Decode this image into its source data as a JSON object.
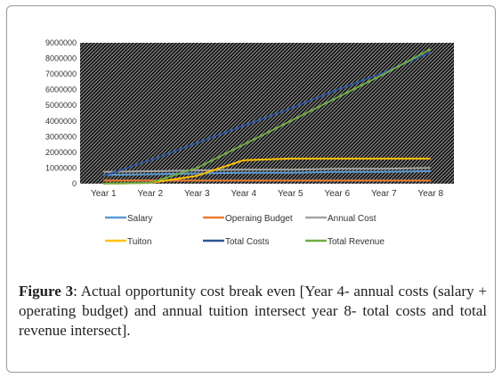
{
  "chart_data": {
    "type": "line",
    "title": "",
    "xlabel": "",
    "ylabel": "",
    "categories": [
      "Year 1",
      "Year 2",
      "Year 3",
      "Year 4",
      "Year 5",
      "Year 6",
      "Year 7",
      "Year 8"
    ],
    "yticks": [
      "0",
      "1000000",
      "2000000",
      "3000000",
      "4000000",
      "5000000",
      "6000000",
      "7000000",
      "8000000",
      "9000000"
    ],
    "ylim": [
      0,
      9000000
    ],
    "grid": "hatched background",
    "legend_position": "bottom",
    "series": [
      {
        "name": "Salary",
        "color": "#5b9bd5",
        "values": [
          550000,
          600000,
          650000,
          700000,
          700000,
          750000,
          750000,
          800000
        ]
      },
      {
        "name": "Operaing Budget",
        "color": "#ed7d31",
        "values": [
          200000,
          200000,
          200000,
          200000,
          200000,
          200000,
          200000,
          200000
        ]
      },
      {
        "name": "Annual Cost",
        "color": "#a5a5a5",
        "values": [
          750000,
          800000,
          850000,
          900000,
          900000,
          950000,
          950000,
          1000000
        ]
      },
      {
        "name": "Tuiton",
        "color": "#ffc000",
        "values": [
          0,
          50000,
          500000,
          1500000,
          1600000,
          1600000,
          1600000,
          1600000
        ]
      },
      {
        "name": "Total Costs",
        "color": "#2f5597",
        "values": [
          500000,
          1500000,
          2600000,
          3700000,
          4800000,
          6000000,
          7100000,
          8400000
        ]
      },
      {
        "name": "Total Revenue",
        "color": "#70ad47",
        "values": [
          0,
          50000,
          1000000,
          2500000,
          4000000,
          5500000,
          7000000,
          8600000
        ]
      }
    ]
  },
  "caption": {
    "label": "Figure 3",
    "text": ": Actual opportunity cost break even [Year 4- annual costs (salary + operating budget) and annual tuition intersect year 8- total costs and total revenue intersect]."
  }
}
